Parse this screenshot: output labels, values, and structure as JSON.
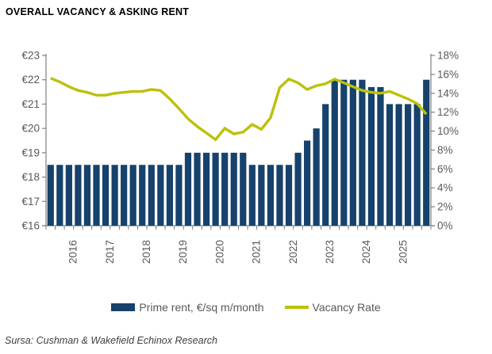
{
  "title": "OVERALL VACANCY & ASKING RENT",
  "source": "Sursa: Cushman & Wakefield Echinox Research",
  "legend": {
    "bar_label": "Prime rent, €/sq m/month",
    "line_label": "Vacancy Rate"
  },
  "colors": {
    "bar": "#16426b",
    "line": "#bbc10a",
    "axis": "#808080",
    "tick_label": "#595959"
  },
  "chart_data": {
    "type": "combo (bar + line)",
    "title": "OVERALL VACANCY & ASKING RENT",
    "x_tick_labels": [
      "2016",
      "2017",
      "2018",
      "2019",
      "2020",
      "2021",
      "2022",
      "2023",
      "2024",
      "2025"
    ],
    "periods": [
      "2015-Q2",
      "2015-Q3",
      "2015-Q4",
      "2016-Q1",
      "2016-Q2",
      "2016-Q3",
      "2016-Q4",
      "2017-Q1",
      "2017-Q2",
      "2017-Q3",
      "2017-Q4",
      "2018-Q1",
      "2018-Q2",
      "2018-Q3",
      "2018-Q4",
      "2019-Q1",
      "2019-Q2",
      "2019-Q3",
      "2019-Q4",
      "2020-Q1",
      "2020-Q2",
      "2020-Q3",
      "2020-Q4",
      "2021-Q1",
      "2021-Q2",
      "2021-Q3",
      "2021-Q4",
      "2022-Q1",
      "2022-Q2",
      "2022-Q3",
      "2022-Q4",
      "2023-Q1",
      "2023-Q2",
      "2023-Q3",
      "2023-Q4",
      "2024-Q1",
      "2024-Q2",
      "2024-Q3",
      "2024-Q4",
      "2025-Q1",
      "2025-Q2",
      "2025-Q3"
    ],
    "series": [
      {
        "name": "Prime rent, €/sq m/month",
        "type": "bar",
        "axis": "left",
        "unit": "€/sq m/month",
        "values": [
          18.5,
          18.5,
          18.5,
          18.5,
          18.5,
          18.5,
          18.5,
          18.5,
          18.5,
          18.5,
          18.5,
          18.5,
          18.5,
          18.5,
          18.5,
          19,
          19,
          19,
          19,
          19,
          19,
          19,
          18.5,
          18.5,
          18.5,
          18.5,
          18.5,
          19,
          19.5,
          20,
          21,
          22,
          22,
          22,
          22,
          21.7,
          21.7,
          21,
          21,
          21,
          21,
          22
        ]
      },
      {
        "name": "Vacancy Rate",
        "type": "line",
        "axis": "right",
        "unit": "%",
        "values": [
          15.6,
          15.2,
          14.7,
          14.3,
          14.1,
          13.8,
          13.8,
          14.0,
          14.1,
          14.2,
          14.2,
          14.4,
          14.3,
          13.4,
          12.4,
          11.3,
          10.5,
          9.8,
          9.1,
          10.3,
          9.7,
          9.9,
          10.7,
          10.2,
          11.4,
          14.6,
          15.5,
          15.1,
          14.4,
          14.8,
          15.0,
          15.5,
          15.1,
          14.7,
          14.3,
          14.1,
          14.0,
          14.2,
          13.8,
          13.4,
          12.9,
          11.8
        ]
      }
    ],
    "left_axis": {
      "min": 16,
      "max": 23,
      "step": 1,
      "tick_labels": [
        "€16",
        "€17",
        "€18",
        "€19",
        "€20",
        "€21",
        "€22",
        "€23"
      ]
    },
    "right_axis": {
      "min": 0,
      "max": 18,
      "step": 2,
      "tick_labels": [
        "0%",
        "2%",
        "4%",
        "6%",
        "8%",
        "10%",
        "12%",
        "14%",
        "16%",
        "18%"
      ]
    },
    "grid": false,
    "legend_position": "bottom"
  }
}
